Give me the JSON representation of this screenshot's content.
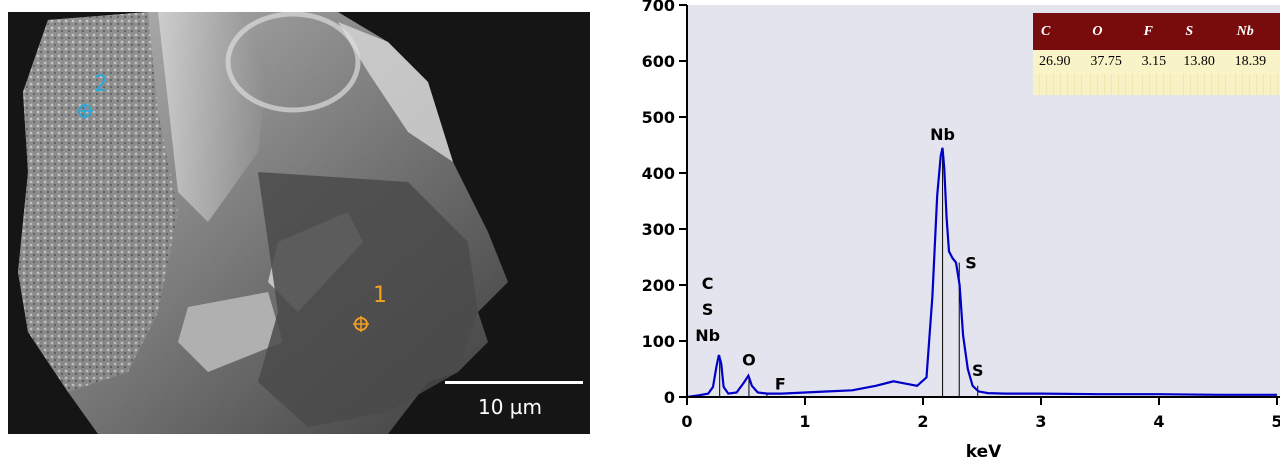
{
  "sem_image": {
    "scale_label": "10 µm",
    "points": [
      {
        "label": "1",
        "color": "#f5a020"
      },
      {
        "label": "2",
        "color": "#2aa8d8"
      }
    ]
  },
  "composition_table": {
    "headers": [
      "C",
      "O",
      "F",
      "S",
      "Nb"
    ],
    "values": [
      "26.90",
      "37.75",
      "3.15",
      "13.80",
      "18.39"
    ],
    "header_color": "#780c0c",
    "row_color": "#f9f4c8"
  },
  "chart_data": {
    "type": "line",
    "xlabel": "keV",
    "ylabel": "",
    "xlim": [
      0,
      5
    ],
    "ylim": [
      0,
      700
    ],
    "x_ticks": [
      "0",
      "1",
      "2",
      "3",
      "4",
      "5"
    ],
    "y_ticks": [
      "0",
      "100",
      "200",
      "300",
      "400",
      "500",
      "600",
      "700"
    ],
    "line_color": "#0000c8",
    "background_color": "#e4e4ee",
    "series": [
      {
        "x": [
          0.0,
          0.1,
          0.18,
          0.22,
          0.25,
          0.27,
          0.29,
          0.31,
          0.35,
          0.42,
          0.48,
          0.52,
          0.55,
          0.6,
          0.68,
          0.8,
          1.0,
          1.2,
          1.4,
          1.6,
          1.75,
          1.85,
          1.95,
          2.03,
          2.08,
          2.12,
          2.15,
          2.165,
          2.18,
          2.2,
          2.22,
          2.25,
          2.28,
          2.31,
          2.34,
          2.38,
          2.42,
          2.47,
          2.55,
          2.7,
          3.0,
          3.5,
          4.0,
          4.5,
          5.0
        ],
        "y": [
          0,
          3,
          6,
          18,
          55,
          75,
          60,
          18,
          6,
          8,
          25,
          38,
          20,
          8,
          6,
          6,
          8,
          10,
          12,
          20,
          28,
          24,
          20,
          35,
          180,
          360,
          430,
          445,
          410,
          320,
          260,
          248,
          240,
          200,
          110,
          50,
          20,
          10,
          7,
          6,
          6,
          5,
          5,
          4,
          4
        ]
      }
    ],
    "peaks": [
      {
        "x": 0.277,
        "height": 75,
        "labels": [
          "C",
          "S",
          "Nb"
        ]
      },
      {
        "x": 0.525,
        "height": 38,
        "labels": [
          "O"
        ]
      },
      {
        "x": 0.677,
        "height": 6,
        "labels": [
          "F"
        ]
      },
      {
        "x": 2.166,
        "height": 445,
        "labels": [
          "Nb"
        ]
      },
      {
        "x": 2.307,
        "height": 240,
        "labels": [
          "S"
        ]
      },
      {
        "x": 2.464,
        "height": 20,
        "labels": [
          "S"
        ]
      }
    ]
  }
}
